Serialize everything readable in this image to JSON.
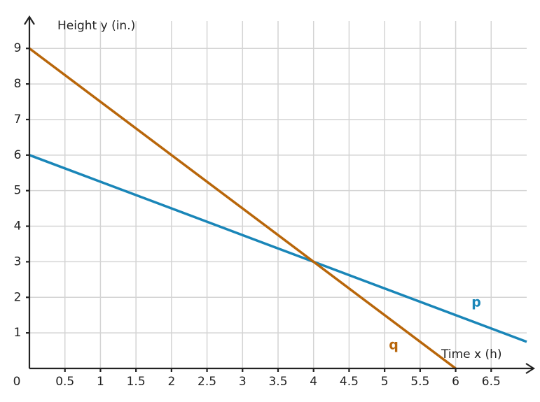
{
  "chart_data": {
    "type": "line",
    "xlabel": "Time x (h)",
    "ylabel": "Height y (in.)",
    "series": [
      {
        "name": "p",
        "color": "#1a86b8",
        "x": [
          0,
          7
        ],
        "values": [
          6,
          0.75
        ]
      },
      {
        "name": "q",
        "color": "#b8660a",
        "x": [
          0,
          6
        ],
        "values": [
          9,
          0
        ]
      }
    ],
    "xlim": [
      0,
      7
    ],
    "ylim": [
      0,
      9.85
    ],
    "xticks": [
      0,
      0.5,
      1,
      1.5,
      2,
      2.5,
      3,
      3.5,
      4,
      4.5,
      5,
      5.5,
      6,
      6.5
    ],
    "yticks": [
      1,
      2,
      3,
      4,
      5,
      6,
      7,
      8,
      9
    ],
    "grid": true
  }
}
